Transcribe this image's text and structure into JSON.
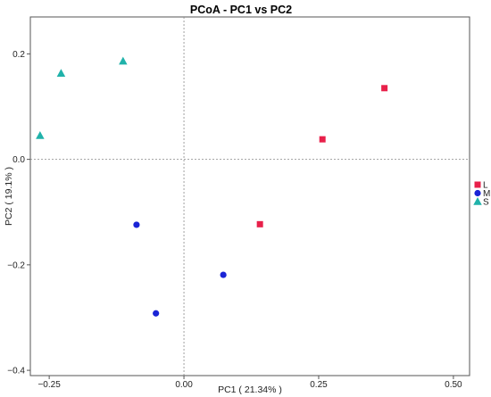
{
  "chart_data": {
    "type": "scatter",
    "title": "PCoA - PC1 vs PC2",
    "xlabel": "PC1 ( 21.34% )",
    "ylabel": "PC2 ( 19.1% )",
    "xlim": [
      -0.285,
      0.53
    ],
    "ylim": [
      -0.41,
      0.27
    ],
    "xticks": [
      -0.25,
      0.0,
      0.25,
      0.5
    ],
    "xtick_labels": [
      "−0.25",
      "0.00",
      "0.25",
      "0.50"
    ],
    "yticks": [
      -0.4,
      -0.2,
      0.0,
      0.2
    ],
    "ytick_labels": [
      "−0.4",
      "−0.2",
      "0.0",
      "0.2"
    ],
    "reference_lines": {
      "x": 0,
      "y": 0
    },
    "grid": false,
    "legend_position": "right",
    "series": [
      {
        "name": "L",
        "marker": "square",
        "color": "#e8204a",
        "points": [
          {
            "x": 0.141,
            "y": -0.123
          },
          {
            "x": 0.257,
            "y": 0.038
          },
          {
            "x": 0.372,
            "y": 0.135
          }
        ]
      },
      {
        "name": "M",
        "marker": "circle",
        "color": "#1a24d6",
        "points": [
          {
            "x": -0.088,
            "y": -0.124
          },
          {
            "x": -0.052,
            "y": -0.292
          },
          {
            "x": 0.073,
            "y": -0.219
          }
        ]
      },
      {
        "name": "S",
        "marker": "triangle",
        "color": "#20b2aa",
        "points": [
          {
            "x": -0.267,
            "y": 0.045
          },
          {
            "x": -0.228,
            "y": 0.163
          },
          {
            "x": -0.113,
            "y": 0.186
          }
        ]
      }
    ]
  }
}
